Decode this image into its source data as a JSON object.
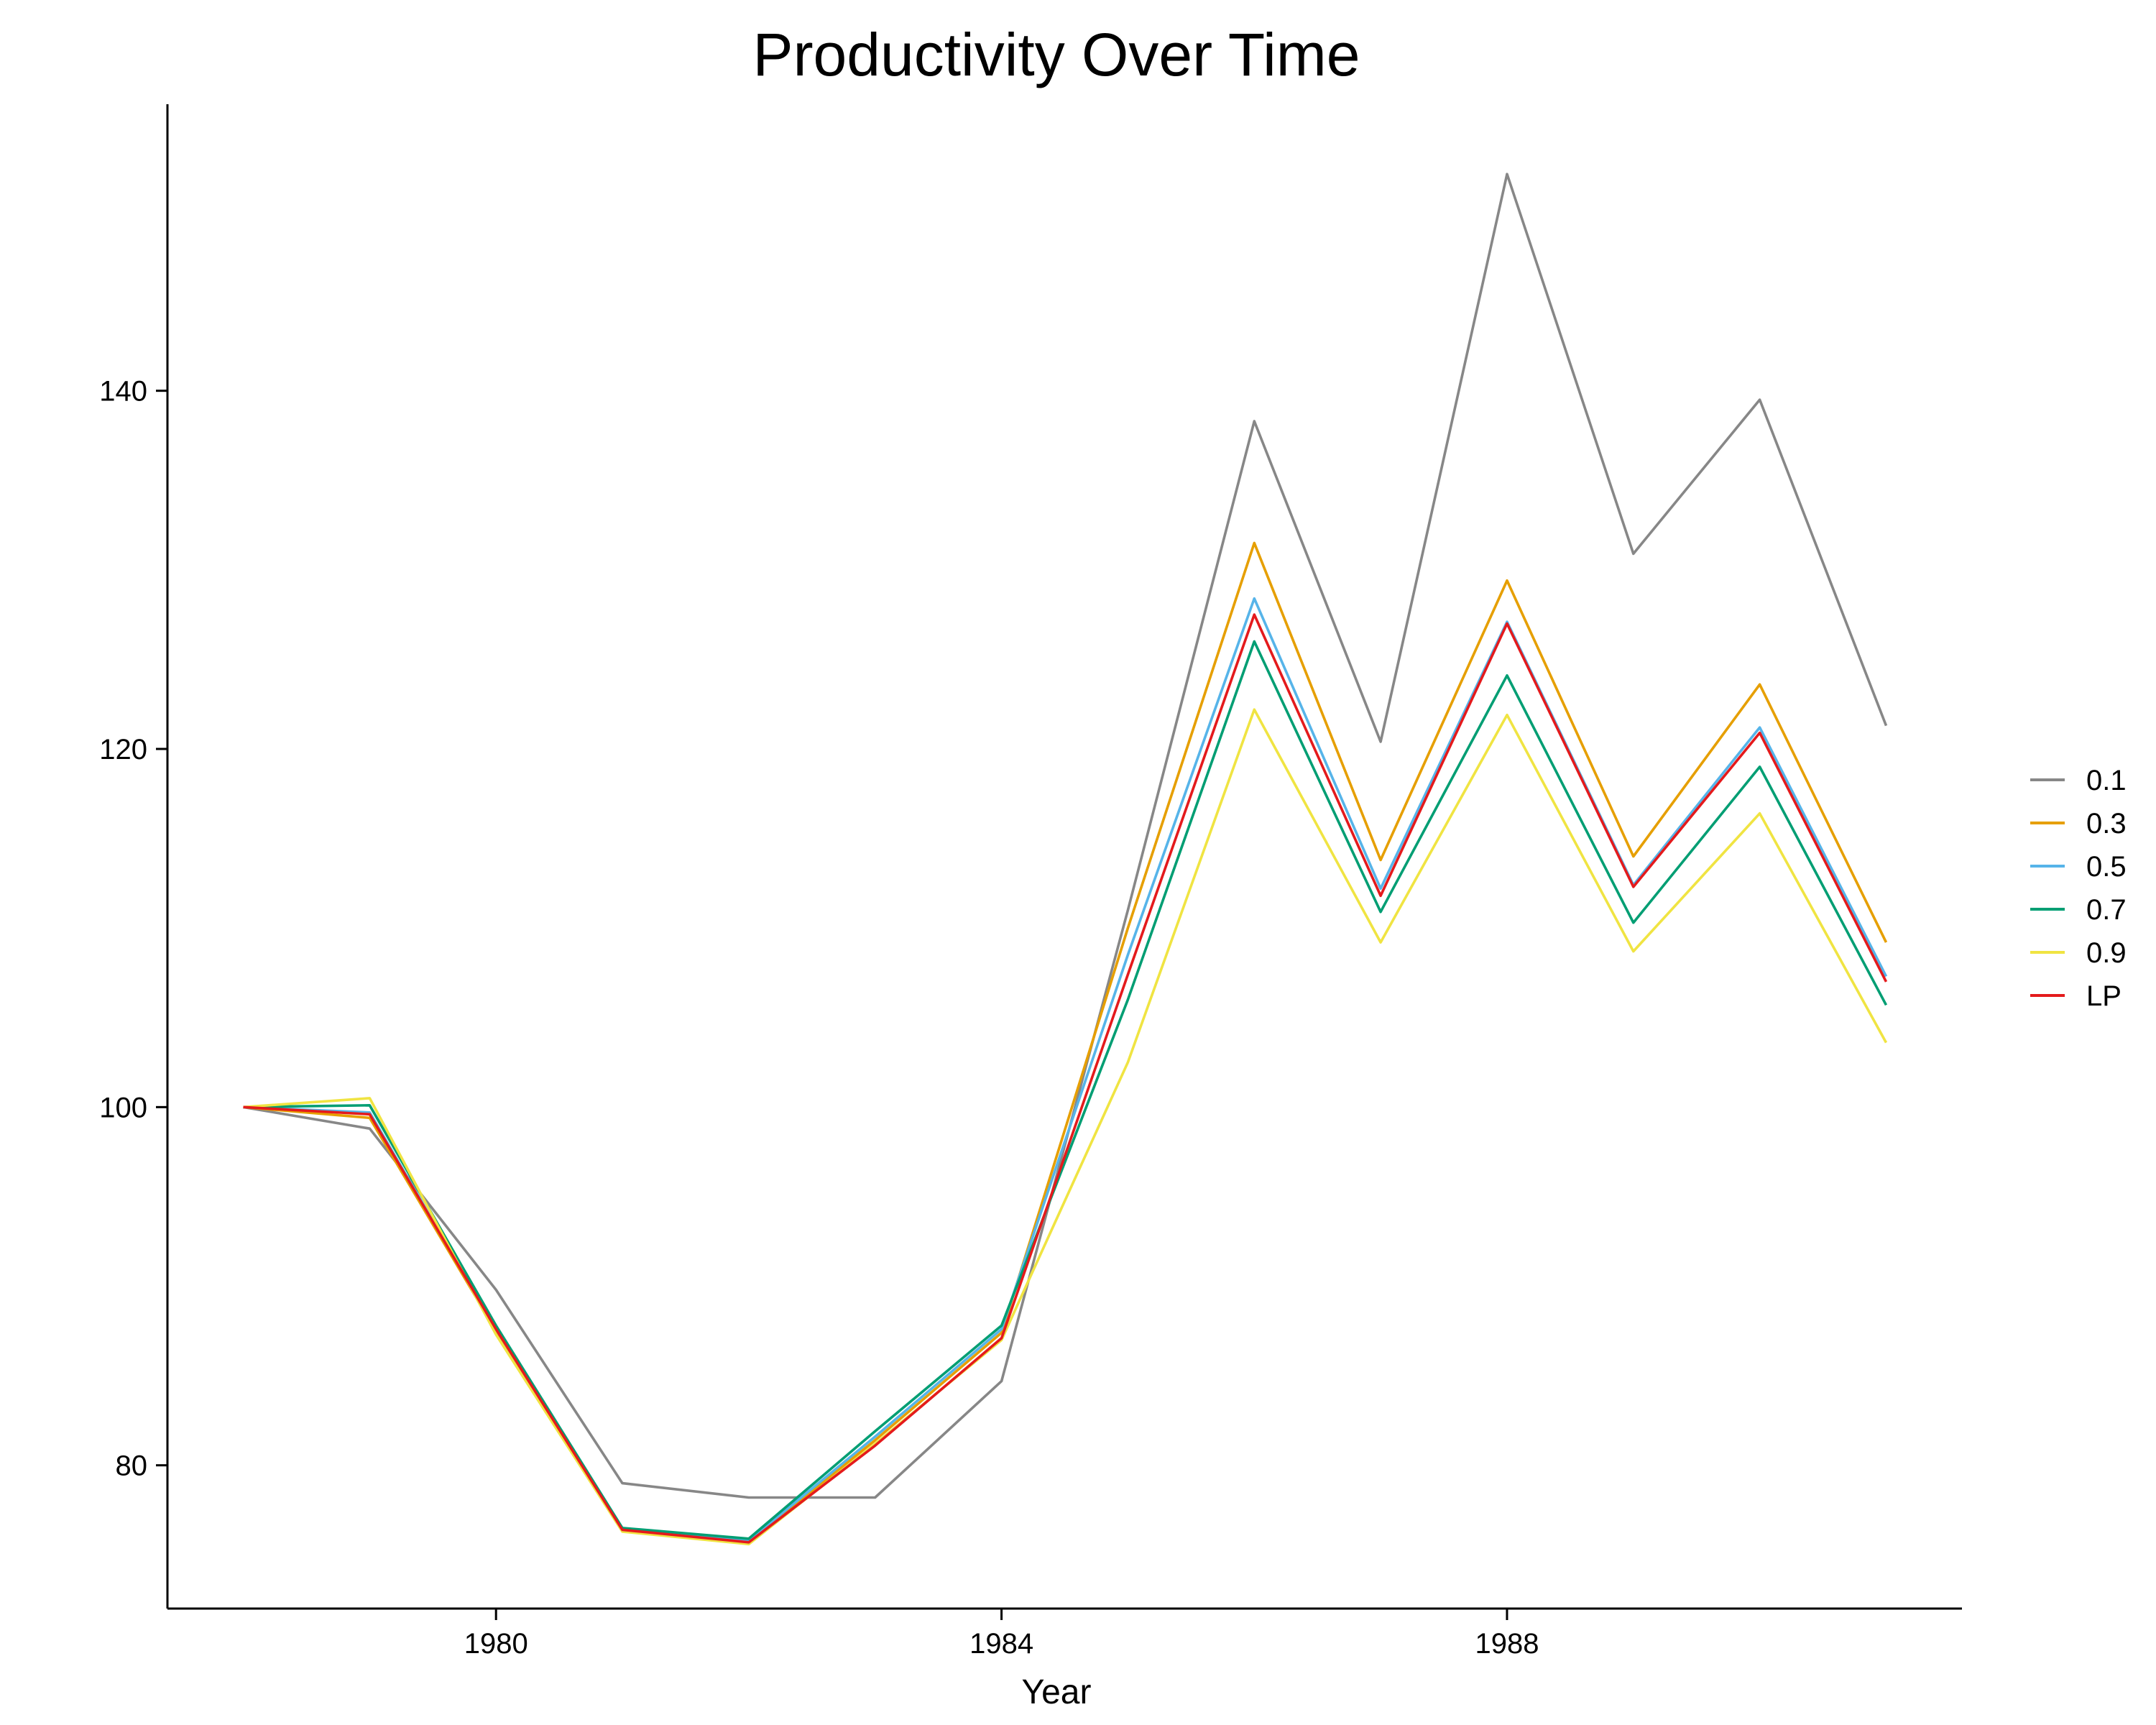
{
  "chart_data": {
    "type": "line",
    "title": "Productivity Over Time",
    "xlabel": "Year",
    "ylabel": "",
    "xlim": [
      1977.4,
      1991.6
    ],
    "ylim": [
      72,
      156
    ],
    "xticks": [
      1980,
      1984,
      1988
    ],
    "yticks": [
      80,
      100,
      120,
      140
    ],
    "grid": false,
    "legend_position": "right",
    "x": [
      1978,
      1979,
      1980,
      1981,
      1982,
      1983,
      1984,
      1985,
      1986,
      1987,
      1988,
      1989,
      1990,
      1991
    ],
    "series": [
      {
        "name": "0.1",
        "color": "#878787",
        "values": [
          100,
          98.8,
          89.8,
          79.0,
          78.2,
          78.2,
          84.7,
          111.0,
          138.3,
          120.4,
          152.1,
          130.9,
          139.5,
          121.3
        ]
      },
      {
        "name": "0.3",
        "color": "#E69F00",
        "values": [
          100,
          99.4,
          87.5,
          76.4,
          75.7,
          81.4,
          87.4,
          110.0,
          131.5,
          113.8,
          129.4,
          114.0,
          123.6,
          109.2
        ]
      },
      {
        "name": "0.5",
        "color": "#56B4E9",
        "values": [
          100,
          99.7,
          87.6,
          76.4,
          75.8,
          81.6,
          87.6,
          108.5,
          128.4,
          112.2,
          127.1,
          112.4,
          121.2,
          107.3
        ]
      },
      {
        "name": "0.7",
        "color": "#009E73",
        "values": [
          100,
          100.1,
          87.8,
          76.5,
          75.9,
          81.9,
          87.8,
          106.0,
          126.0,
          110.9,
          124.1,
          110.3,
          119.0,
          105.7
        ]
      },
      {
        "name": "0.9",
        "color": "#F0E442",
        "values": [
          100,
          100.5,
          87.3,
          76.3,
          75.6,
          81.2,
          87.0,
          102.5,
          122.2,
          109.2,
          121.9,
          108.7,
          116.4,
          103.6
        ]
      },
      {
        "name": "LP",
        "color": "#E41A1C",
        "values": [
          100,
          99.6,
          87.6,
          76.4,
          75.7,
          81.1,
          87.1,
          107.4,
          127.5,
          111.8,
          127.0,
          112.3,
          120.9,
          107.0
        ]
      }
    ]
  }
}
